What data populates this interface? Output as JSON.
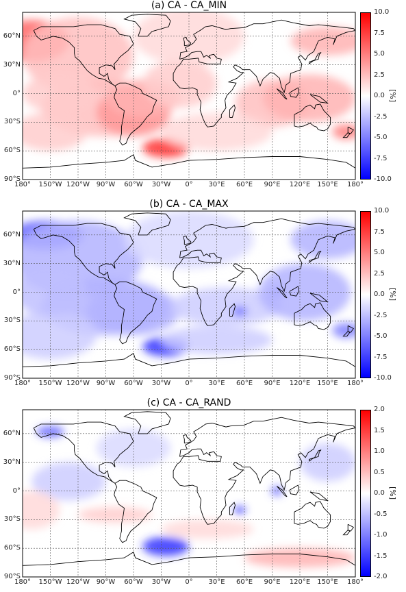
{
  "panels": [
    {
      "id": "a",
      "title": "(a) CA - CA_MIN",
      "cbar_ticks": [
        "10.0",
        "7.5",
        "5.0",
        "2.5",
        "0.0",
        "-2.5",
        "-5.0",
        "-7.5",
        "-10.0"
      ],
      "vmax": 10.0
    },
    {
      "id": "b",
      "title": "(b) CA - CA_MAX",
      "cbar_ticks": [
        "10.0",
        "7.5",
        "5.0",
        "2.5",
        "0.0",
        "-2.5",
        "-5.0",
        "-7.5",
        "-10.0"
      ],
      "vmax": 10.0
    },
    {
      "id": "c",
      "title": "(c) CA - CA_RAND",
      "cbar_ticks": [
        "2.0",
        "1.5",
        "1.0",
        "0.5",
        "0.0",
        "-0.5",
        "-1.0",
        "-1.5",
        "-2.0"
      ],
      "vmax": 2.0
    }
  ],
  "lat_labels": [
    "60°N",
    "30°N",
    "0°",
    "30°S",
    "60°S",
    "90°S"
  ],
  "lon_labels": [
    "180°",
    "150°W",
    "120°W",
    "90°W",
    "60°W",
    "30°W",
    "0°",
    "30°E",
    "60°E",
    "90°E",
    "120°E",
    "150°E",
    "180°"
  ],
  "unit": "[%]",
  "colormap": {
    "high": "#ff0000",
    "mid": "#ffffff",
    "low": "#0000ff"
  }
}
